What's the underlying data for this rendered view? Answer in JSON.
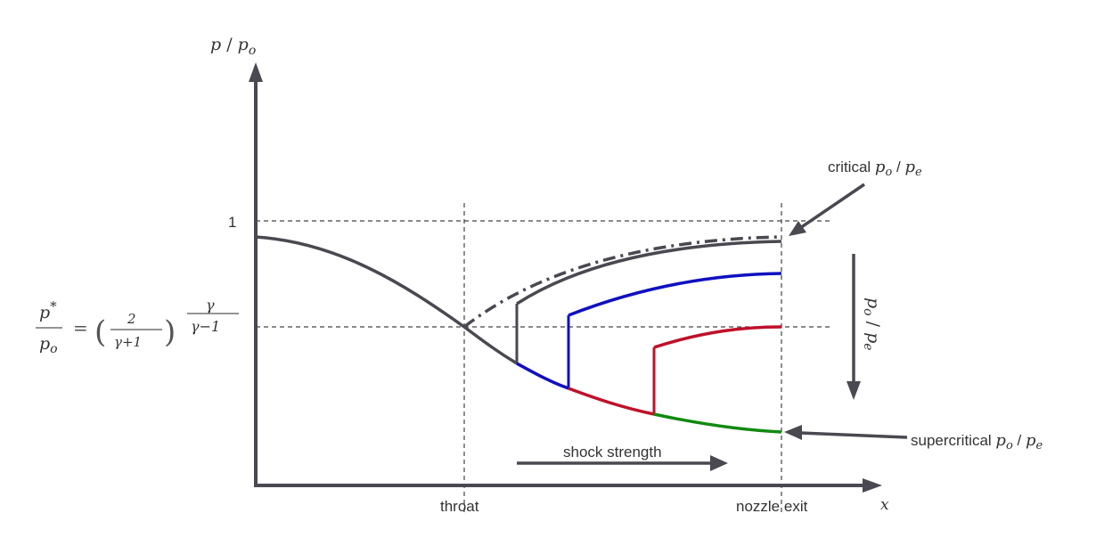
{
  "labels": {
    "y_axis": {
      "p": "p",
      "slash": " / ",
      "p0": "p",
      "sub_o": "o"
    },
    "x_axis": "x",
    "one": "1",
    "formula": {
      "lhs_num": "p",
      "lhs_num_sup": "*",
      "lhs_den": "p",
      "lhs_den_sub": "o",
      "eq": "=",
      "frac_num": "2",
      "frac_den": "γ+1",
      "exp_num": "γ",
      "exp_den": "γ−1"
    },
    "throat": "throat",
    "nozzle_exit": "nozzle exit",
    "critical": {
      "text": "critical ",
      "p": "p",
      "o": "o",
      "slash": " / ",
      "pe": "p",
      "e": "e"
    },
    "supercritical": {
      "text": "supercritical ",
      "p": "p",
      "o": "o",
      "slash": " / ",
      "pe": "p",
      "e": "e"
    },
    "shock_strength": "shock strength",
    "vertical_ratio": {
      "p": "p",
      "o": "o",
      "slash": " / ",
      "pe": "p",
      "e": "e"
    }
  },
  "colors": {
    "axis": "#4a4850",
    "curve": "#4a4850",
    "blue": "#1010c0",
    "red": "#c0102a",
    "green": "#108a10",
    "dashed": "#444444"
  }
}
